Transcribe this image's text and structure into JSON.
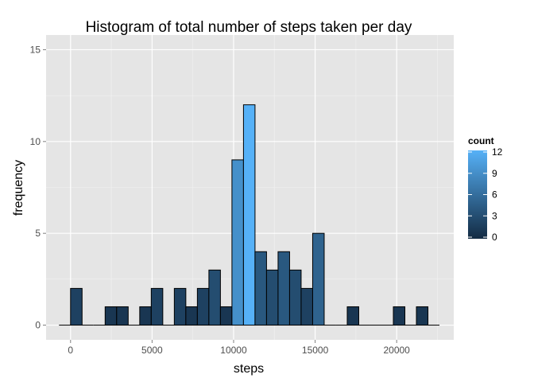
{
  "chart_data": {
    "type": "bar",
    "subtype": "histogram",
    "title": "Histogram of total number of steps taken per day",
    "xlabel": "steps",
    "ylabel": "frequency",
    "xlim": [
      -1500,
      23500
    ],
    "ylim": [
      -0.8,
      15.8
    ],
    "x_ticks": [
      0,
      5000,
      10000,
      15000,
      20000
    ],
    "x_tick_labels": [
      "0",
      "5000",
      "10000",
      "15000",
      "20000"
    ],
    "y_ticks": [
      0,
      5,
      10,
      15
    ],
    "y_tick_labels": [
      "0",
      "5",
      "10",
      "15"
    ],
    "x_minor_ticks": [
      2500,
      7500,
      12500,
      17500,
      22500
    ],
    "y_minor_ticks": [
      2.5,
      7.5,
      12.5
    ],
    "bin_width": 707.03,
    "bins_start": -707.03,
    "counts": [
      0,
      2,
      0,
      0,
      1,
      1,
      0,
      1,
      2,
      0,
      2,
      1,
      2,
      3,
      1,
      9,
      12,
      4,
      3,
      4,
      3,
      2,
      5,
      0,
      0,
      1,
      0,
      0,
      0,
      1,
      0,
      1,
      0
    ],
    "grid": true,
    "legend": {
      "title": "count",
      "placement": "right",
      "range": [
        0,
        12
      ],
      "ticks": [
        0,
        3,
        6,
        9,
        12
      ],
      "tick_labels": [
        "0",
        "3",
        "6",
        "9",
        "12"
      ],
      "color_low": "#132B43",
      "color_high": "#56B1F7"
    },
    "colors": {
      "panel_background": "#E5E5E5",
      "grid_major": "#FFFFFF",
      "grid_minor": "#F2F2F2",
      "bar_outline": "#000000"
    }
  }
}
